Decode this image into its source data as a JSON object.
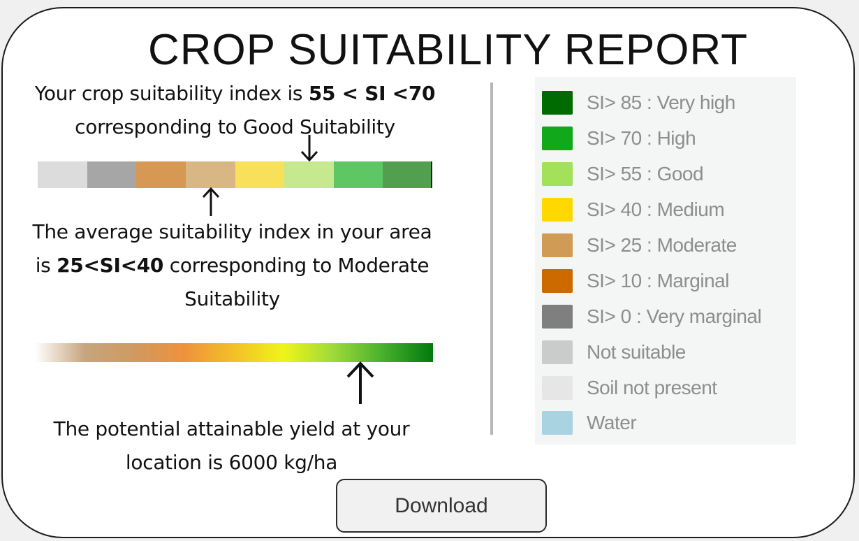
{
  "title": "CROP SUITABILITY REPORT",
  "crop_index": {
    "prefix": "Your crop suitability index is ",
    "range": "55 < SI <70",
    "line2": "corresponding to Good Suitability"
  },
  "area_index": {
    "prefix": "The average suitability index in your area",
    "line2_prefix": "is ",
    "range": "25<SI<40",
    "line2_suffix": " corresponding to Moderate",
    "line3": "Suitability"
  },
  "yield": {
    "line1": "The potential attainable yield at your",
    "line2": "location is 6000 kg/ha"
  },
  "index_scale_colors": [
    "#dcdcdc",
    "#a6a6a6",
    "#d69852",
    "#d9b785",
    "#f8e05a",
    "#c6e98f",
    "#5ec764",
    "#52a04f"
  ],
  "yield_gradient_colors": [
    "#ffffff",
    "#c7a57e",
    "#cf9a60",
    "#f0913b",
    "#f3c028",
    "#eef51a",
    "#9ed93a",
    "#47b02c",
    "#007a0c"
  ],
  "legend": [
    {
      "label": "SI> 85 : Very high",
      "color": "#006b00"
    },
    {
      "label": "SI> 70 : High",
      "color": "#12a81c"
    },
    {
      "label": "SI> 55 : Good",
      "color": "#a4e15a"
    },
    {
      "label": "SI> 40 : Medium",
      "color": "#ffd800"
    },
    {
      "label": "SI> 25 : Moderate",
      "color": "#cf9b55"
    },
    {
      "label": "SI> 10 : Marginal",
      "color": "#cc6a00"
    },
    {
      "label": "SI> 0 : Very marginal",
      "color": "#7f7f7f"
    },
    {
      "label": "Not suitable",
      "color": "#cbcbcb"
    },
    {
      "label": "Soil not present",
      "color": "#e6e6e6"
    },
    {
      "label": "Water",
      "color": "#a9d3e0"
    }
  ],
  "download_label": "Download"
}
